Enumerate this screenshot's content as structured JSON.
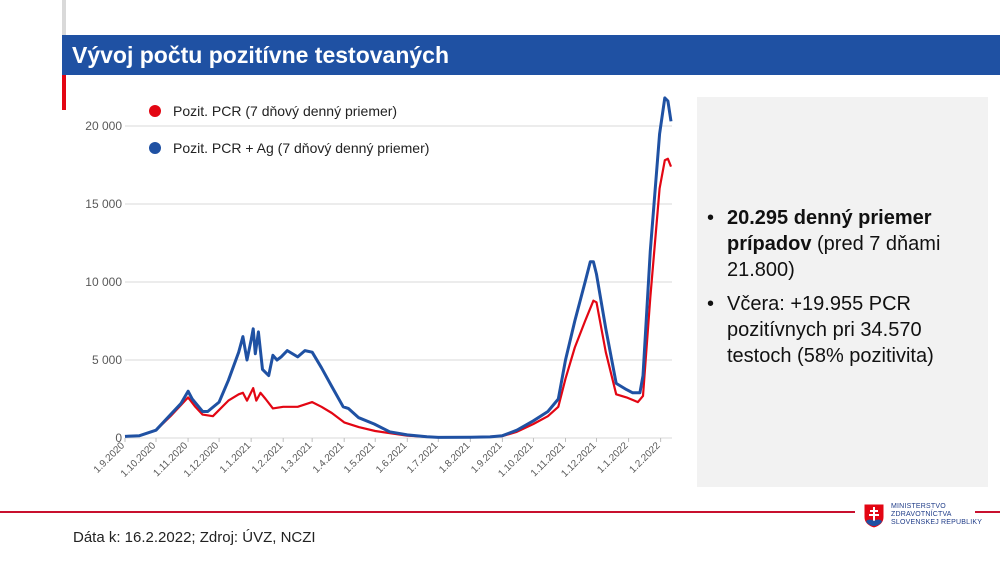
{
  "title": "Vývoj počtu pozitívne testovaných",
  "colors": {
    "accent_blue": "#1f51a3",
    "accent_red": "#e30613",
    "panel_bg": "#f2f2f2"
  },
  "chart_data": {
    "type": "line",
    "title": "",
    "xlabel": "",
    "ylabel": "",
    "ylim": [
      0,
      22000
    ],
    "yticks": [
      0,
      5000,
      10000,
      15000,
      20000
    ],
    "ytick_labels": [
      "0",
      "5 000",
      "10 000",
      "15 000",
      "20 000"
    ],
    "xtick_labels": [
      "1.9.2020",
      "1.10.2020",
      "1.11.2020",
      "1.12.2020",
      "1.1.2021",
      "1.2.2021",
      "1.3.2021",
      "1.4.2021",
      "1.5.2021",
      "1.6.2021",
      "1.7.2021",
      "1.8.2021",
      "1.9.2021",
      "1.10.2021",
      "1.11.2021",
      "1.12.2021",
      "1.1.2022",
      "1.2.2022"
    ],
    "xtick_dates": [
      "2020-09-01",
      "2020-10-01",
      "2020-11-01",
      "2020-12-01",
      "2021-01-01",
      "2021-02-01",
      "2021-03-01",
      "2021-04-01",
      "2021-05-01",
      "2021-06-01",
      "2021-07-01",
      "2021-08-01",
      "2021-09-01",
      "2021-10-01",
      "2021-11-01",
      "2021-12-01",
      "2022-01-01",
      "2022-02-01"
    ],
    "xlim": [
      "2020-09-01",
      "2022-02-12"
    ],
    "grid": true,
    "legend": "top-left",
    "series": [
      {
        "name": "Pozit. PCR (7 dňový denný priemer)",
        "color": "#e30613",
        "points": [
          [
            "2020-09-01",
            100
          ],
          [
            "2020-09-15",
            150
          ],
          [
            "2020-10-01",
            500
          ],
          [
            "2020-10-15",
            1400
          ],
          [
            "2020-10-25",
            2100
          ],
          [
            "2020-11-01",
            2600
          ],
          [
            "2020-11-08",
            2000
          ],
          [
            "2020-11-15",
            1500
          ],
          [
            "2020-11-25",
            1400
          ],
          [
            "2020-12-10",
            2400
          ],
          [
            "2020-12-20",
            2800
          ],
          [
            "2020-12-24",
            2900
          ],
          [
            "2020-12-28",
            2400
          ],
          [
            "2021-01-03",
            3200
          ],
          [
            "2021-01-06",
            2400
          ],
          [
            "2021-01-10",
            2900
          ],
          [
            "2021-01-15",
            2500
          ],
          [
            "2021-01-22",
            1900
          ],
          [
            "2021-02-01",
            2000
          ],
          [
            "2021-02-15",
            2000
          ],
          [
            "2021-03-01",
            2300
          ],
          [
            "2021-03-10",
            2000
          ],
          [
            "2021-03-20",
            1600
          ],
          [
            "2021-04-01",
            1000
          ],
          [
            "2021-04-15",
            700
          ],
          [
            "2021-05-01",
            450
          ],
          [
            "2021-06-01",
            150
          ],
          [
            "2021-07-01",
            40
          ],
          [
            "2021-08-01",
            40
          ],
          [
            "2021-09-01",
            120
          ],
          [
            "2021-09-15",
            400
          ],
          [
            "2021-10-01",
            900
          ],
          [
            "2021-10-15",
            1400
          ],
          [
            "2021-10-25",
            2000
          ],
          [
            "2021-11-01",
            3800
          ],
          [
            "2021-11-10",
            5800
          ],
          [
            "2021-11-20",
            7500
          ],
          [
            "2021-11-28",
            8800
          ],
          [
            "2021-12-01",
            8700
          ],
          [
            "2021-12-10",
            5500
          ],
          [
            "2021-12-20",
            2800
          ],
          [
            "2021-12-30",
            2600
          ],
          [
            "2022-01-10",
            2300
          ],
          [
            "2022-01-15",
            2700
          ],
          [
            "2022-01-22",
            9000
          ],
          [
            "2022-01-31",
            16000
          ],
          [
            "2022-02-05",
            17800
          ],
          [
            "2022-02-08",
            17900
          ],
          [
            "2022-02-11",
            17400
          ]
        ]
      },
      {
        "name": "Pozit. PCR + Ag (7 dňový denný priemer)",
        "color": "#1f51a3",
        "points": [
          [
            "2020-09-01",
            100
          ],
          [
            "2020-09-15",
            150
          ],
          [
            "2020-10-01",
            500
          ],
          [
            "2020-10-15",
            1500
          ],
          [
            "2020-10-25",
            2200
          ],
          [
            "2020-11-01",
            3000
          ],
          [
            "2020-11-05",
            2500
          ],
          [
            "2020-11-15",
            1700
          ],
          [
            "2020-11-20",
            1700
          ],
          [
            "2020-12-01",
            2300
          ],
          [
            "2020-12-10",
            3700
          ],
          [
            "2020-12-20",
            5500
          ],
          [
            "2020-12-24",
            6500
          ],
          [
            "2020-12-28",
            5000
          ],
          [
            "2021-01-01",
            6300
          ],
          [
            "2021-01-03",
            7000
          ],
          [
            "2021-01-05",
            5400
          ],
          [
            "2021-01-08",
            6800
          ],
          [
            "2021-01-12",
            4400
          ],
          [
            "2021-01-18",
            4000
          ],
          [
            "2021-01-22",
            5300
          ],
          [
            "2021-01-26",
            5000
          ],
          [
            "2021-01-30",
            5200
          ],
          [
            "2021-02-05",
            5600
          ],
          [
            "2021-02-15",
            5200
          ],
          [
            "2021-02-22",
            5600
          ],
          [
            "2021-03-01",
            5500
          ],
          [
            "2021-03-10",
            4500
          ],
          [
            "2021-03-20",
            3300
          ],
          [
            "2021-03-31",
            2000
          ],
          [
            "2021-04-05",
            1900
          ],
          [
            "2021-04-15",
            1300
          ],
          [
            "2021-04-30",
            900
          ],
          [
            "2021-05-15",
            400
          ],
          [
            "2021-06-01",
            200
          ],
          [
            "2021-06-20",
            80
          ],
          [
            "2021-07-01",
            40
          ],
          [
            "2021-08-01",
            50
          ],
          [
            "2021-08-20",
            70
          ],
          [
            "2021-09-01",
            150
          ],
          [
            "2021-09-15",
            500
          ],
          [
            "2021-10-01",
            1100
          ],
          [
            "2021-10-15",
            1700
          ],
          [
            "2021-10-25",
            2500
          ],
          [
            "2021-11-01",
            5000
          ],
          [
            "2021-11-10",
            7500
          ],
          [
            "2021-11-20",
            10000
          ],
          [
            "2021-11-25",
            11300
          ],
          [
            "2021-11-28",
            11300
          ],
          [
            "2021-12-01",
            10500
          ],
          [
            "2021-12-10",
            7000
          ],
          [
            "2021-12-20",
            3500
          ],
          [
            "2021-12-30",
            3100
          ],
          [
            "2022-01-05",
            2900
          ],
          [
            "2022-01-12",
            2900
          ],
          [
            "2022-01-15",
            4000
          ],
          [
            "2022-01-22",
            12000
          ],
          [
            "2022-01-31",
            19500
          ],
          [
            "2022-02-05",
            21800
          ],
          [
            "2022-02-08",
            21600
          ],
          [
            "2022-02-11",
            20300
          ]
        ]
      }
    ]
  },
  "panel": {
    "bullet1_bold": "20.295 denný priemer prípadov",
    "bullet1_rest": " (pred 7 dňami 21.800)",
    "bullet2": "Včera: +19.955 PCR pozitívnych pri 34.570 testoch (58% pozitivita)"
  },
  "footer": "Dáta k: 16.2.2022; Zdroj: ÚVZ, NCZI",
  "logo": {
    "line1": "MINISTERSTVO",
    "line2": "ZDRAVOTNÍCTVA",
    "line3": "SLOVENSKEJ REPUBLIKY"
  }
}
